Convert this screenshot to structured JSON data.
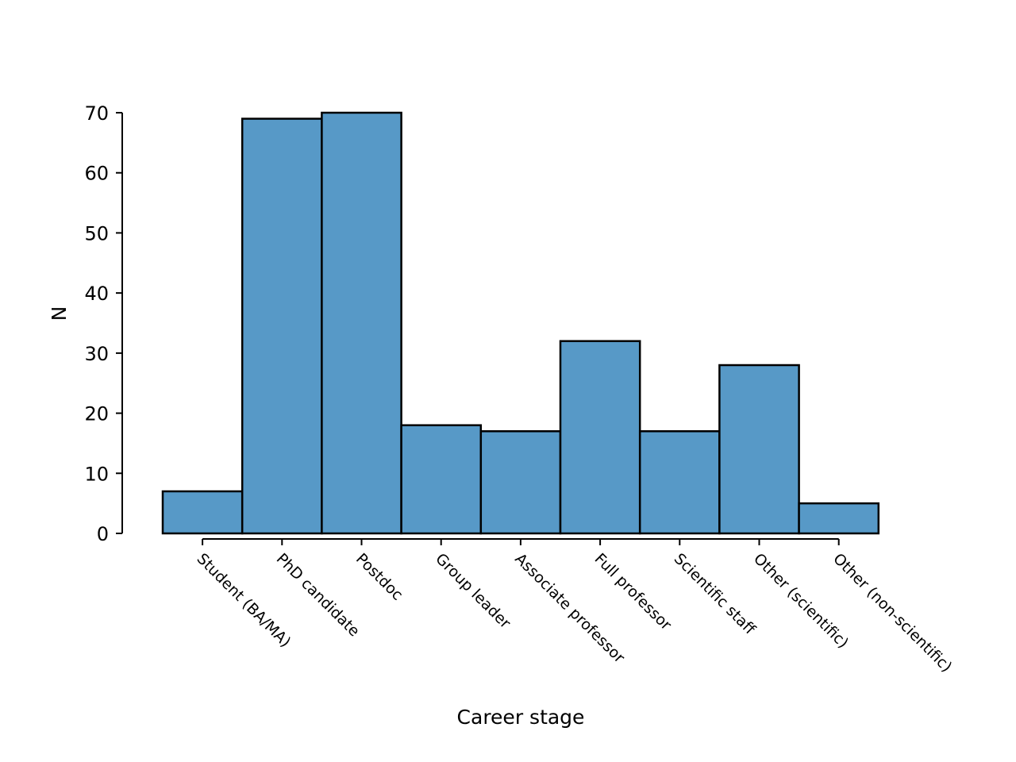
{
  "chart_data": {
    "type": "bar",
    "xlabel": "Career stage",
    "ylabel": "N",
    "categories": [
      "Student (BA/MA)",
      "PhD candidate",
      "Postdoc",
      "Group leader",
      "Associate professor",
      "Full professor",
      "Scientific staff",
      "Other (scientific)",
      "Other (non-scientific)"
    ],
    "values": [
      7,
      69,
      70,
      18,
      17,
      32,
      17,
      28,
      5
    ],
    "ylim": [
      0,
      70
    ],
    "yticks": [
      0,
      10,
      20,
      30,
      40,
      50,
      60,
      70
    ],
    "grid": false,
    "legend": "none",
    "colors": {
      "bar_fill": "#5799c7",
      "bar_edge": "#000000",
      "axis": "#000000"
    }
  }
}
